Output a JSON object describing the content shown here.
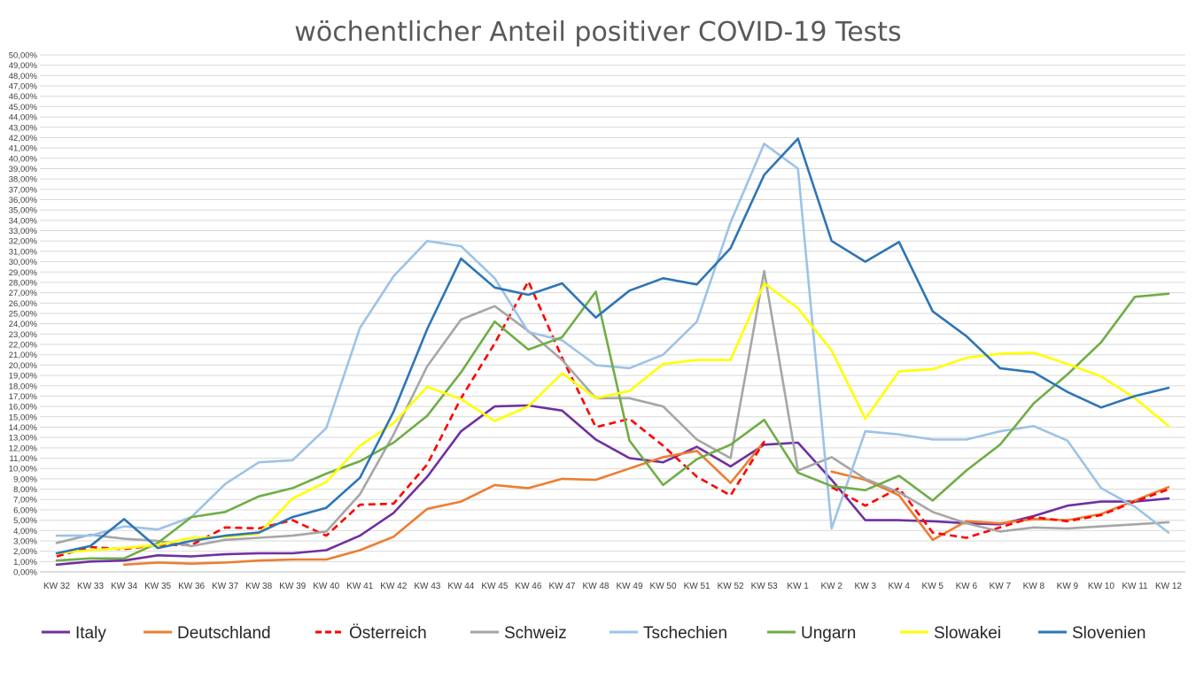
{
  "chart_data": {
    "type": "line",
    "title": "wöchentlicher Anteil positiver COVID-19 Tests",
    "xlabel": "",
    "ylabel": "",
    "ylim": [
      0,
      50
    ],
    "ytick_step": 1,
    "ytick_format": "percent_comma_2",
    "grid": true,
    "legend_position": "bottom",
    "categories": [
      "KW 32",
      "KW 33",
      "KW 34",
      "KW 35",
      "KW 36",
      "KW 37",
      "KW 38",
      "KW 39",
      "KW 40",
      "KW 41",
      "KW 42",
      "KW 43",
      "KW 44",
      "KW 45",
      "KW 46",
      "KW 47",
      "KW 48",
      "KW 49",
      "KW 50",
      "KW 51",
      "KW 52",
      "KW 53",
      "KW 1",
      "KW 2",
      "KW 3",
      "KW 4",
      "KW 5",
      "KW 6",
      "KW 7",
      "KW 8",
      "KW 9",
      "KW 10",
      "KW 11",
      "KW 12"
    ],
    "series": [
      {
        "name": "Italy",
        "color": "#7030a0",
        "dash": false,
        "values": [
          0.7,
          1.0,
          1.1,
          1.6,
          1.5,
          1.7,
          1.8,
          1.8,
          2.1,
          3.5,
          5.7,
          9.2,
          13.6,
          16.0,
          16.1,
          15.6,
          12.8,
          11.0,
          10.6,
          12.1,
          10.2,
          12.3,
          12.5,
          8.9,
          5.0,
          5.0,
          4.9,
          4.7,
          4.6,
          5.4,
          6.4,
          6.8,
          6.8,
          7.1
        ]
      },
      {
        "name": "Deutschland",
        "color": "#ed7d31",
        "dash": false,
        "values": [
          null,
          null,
          0.7,
          0.9,
          0.8,
          0.9,
          1.1,
          1.2,
          1.2,
          2.1,
          3.4,
          6.1,
          6.8,
          8.4,
          8.1,
          9.0,
          8.9,
          10.0,
          11.1,
          11.7,
          8.6,
          12.6,
          null,
          9.7,
          8.9,
          7.4,
          3.1,
          4.9,
          4.7,
          5.1,
          5.0,
          5.6,
          6.9,
          8.2
        ]
      },
      {
        "name": "Österreich",
        "color": "#ff0000",
        "dash": true,
        "values": [
          1.5,
          2.4,
          2.2,
          2.6,
          2.6,
          4.3,
          4.2,
          5.0,
          3.5,
          6.5,
          6.6,
          10.4,
          16.8,
          22.1,
          28.1,
          20.7,
          14.0,
          14.8,
          12.2,
          9.2,
          7.4,
          12.6,
          null,
          8.2,
          6.4,
          8.1,
          3.8,
          3.3,
          4.3,
          5.3,
          4.9,
          5.5,
          6.8,
          8.0
        ]
      },
      {
        "name": "Schweiz",
        "color": "#a6a6a6",
        "dash": false,
        "values": [
          2.8,
          3.6,
          3.2,
          3.0,
          2.5,
          3.1,
          3.3,
          3.5,
          3.9,
          7.5,
          13.3,
          19.9,
          24.4,
          25.7,
          23.3,
          20.5,
          16.8,
          16.8,
          16.0,
          12.8,
          11.0,
          29.1,
          9.8,
          11.1,
          9.0,
          7.7,
          5.8,
          4.7,
          3.9,
          4.3,
          4.2,
          4.4,
          4.6,
          4.8
        ]
      },
      {
        "name": "Tschechien",
        "color": "#9dc3e6",
        "dash": false,
        "values": [
          3.5,
          3.5,
          4.4,
          4.1,
          5.3,
          8.5,
          10.6,
          10.8,
          13.9,
          23.6,
          28.6,
          32.0,
          31.5,
          28.4,
          23.2,
          22.4,
          20.0,
          19.7,
          21.0,
          24.2,
          33.8,
          41.4,
          39.0,
          4.2,
          13.6,
          13.3,
          12.8,
          12.8,
          13.6,
          14.1,
          12.7,
          8.1,
          6.3,
          3.8
        ]
      },
      {
        "name": "Ungarn",
        "color": "#70ad47",
        "dash": false,
        "values": [
          1.1,
          1.3,
          1.3,
          2.8,
          5.3,
          5.8,
          7.3,
          8.1,
          9.5,
          10.7,
          12.5,
          15.1,
          19.3,
          24.2,
          21.5,
          22.7,
          27.1,
          12.7,
          8.4,
          10.9,
          12.3,
          14.7,
          9.6,
          8.3,
          7.9,
          9.3,
          6.9,
          9.8,
          12.3,
          16.3,
          19.1,
          22.2,
          26.6,
          26.9
        ]
      },
      {
        "name": "Slowakei",
        "color": "#ffff00",
        "dash": false,
        "values": [
          1.8,
          2.1,
          2.3,
          2.6,
          3.3,
          3.4,
          3.7,
          7.1,
          8.7,
          12.2,
          14.4,
          17.9,
          16.7,
          14.6,
          16.0,
          19.2,
          16.8,
          17.5,
          20.1,
          20.5,
          20.5,
          27.9,
          25.5,
          21.4,
          14.8,
          19.4,
          19.6,
          20.7,
          21.1,
          21.2,
          20.1,
          18.9,
          16.8,
          14.1
        ]
      },
      {
        "name": "Slovenien",
        "color": "#2e75b6",
        "dash": false,
        "values": [
          1.8,
          2.5,
          5.1,
          2.3,
          3.0,
          3.5,
          3.8,
          5.3,
          6.2,
          9.1,
          15.5,
          23.5,
          30.3,
          27.5,
          26.8,
          27.9,
          24.6,
          27.2,
          28.4,
          27.8,
          31.3,
          38.4,
          41.9,
          32.0,
          30.0,
          31.9,
          25.2,
          22.8,
          19.7,
          19.3,
          17.4,
          15.9,
          17.0,
          17.8
        ]
      }
    ]
  }
}
